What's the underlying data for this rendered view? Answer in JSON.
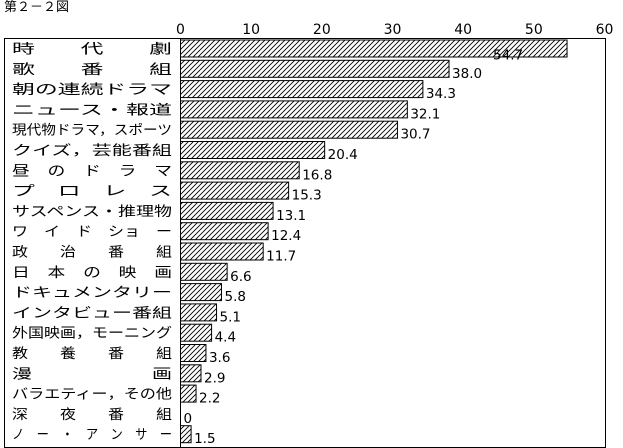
{
  "figure_label": "第２－２図",
  "chart_data": {
    "type": "bar",
    "orientation": "horizontal",
    "title": "",
    "xlim": [
      0,
      60
    ],
    "xticks": [
      0,
      10,
      20,
      30,
      40,
      50,
      60
    ],
    "grid": false,
    "categories": [
      "時　　代　　劇",
      "歌　　番　　組",
      "朝の連続ドラマ",
      "ニュース・報道",
      "現代物ドラマ，スポーツ",
      "クイズ，芸能番組",
      "昼　の　ド　ラ　マ",
      "プ　ロ　レ　ス",
      "サスペンス・推理物",
      "ワ　イ　ド　ショ　ー",
      "政　　治　　番　　組",
      "日　本　の　映　画",
      "ドキュメンタリー",
      "インタビュー番組",
      "外国映画，モーニング",
      "教　　養　　番　　組",
      "漫　　　　　　画",
      "バラエティー，その他",
      "深　　夜　　番　　組",
      "ノ　ー　・　ア　ン　サ　ー"
    ],
    "values": [
      54.7,
      38.0,
      34.3,
      32.1,
      30.7,
      20.4,
      16.8,
      15.3,
      13.1,
      12.4,
      11.7,
      6.6,
      5.8,
      5.1,
      4.4,
      3.6,
      2.9,
      2.2,
      0,
      1.5
    ],
    "value_labels": [
      "54.7",
      "38.0",
      "34.3",
      "32.1",
      "30.7",
      "20.4",
      "16.8",
      "15.3",
      "13.1",
      "12.4",
      "11.7",
      "6.6",
      "5.8",
      "5.1",
      "4.4",
      "3.6",
      "2.9",
      "2.2",
      "0",
      "1.5"
    ],
    "bar_fill": "hatched"
  }
}
